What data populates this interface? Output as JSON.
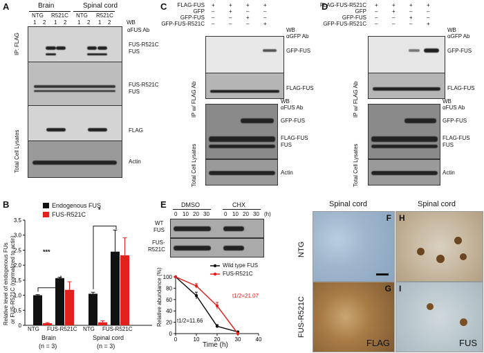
{
  "panels": {
    "A": {
      "label": "A",
      "groups": [
        "Brain",
        "Spinal cord"
      ],
      "lane_groups": [
        "NTG",
        "R521C",
        "NTG",
        "R521C"
      ],
      "lane_numbers": [
        "1",
        "2",
        "1",
        "2",
        "1",
        "2",
        "1",
        "2"
      ],
      "wb": "WB",
      "ip_label": "IP: FLAG",
      "tcl_label": "Total Cell Lysates",
      "ab": "αFUS Ab",
      "band_labels": [
        "FUS-R521C",
        "FUS",
        "FUS-R521C",
        "FUS",
        "FLAG",
        "Actin"
      ]
    },
    "B": {
      "label": "B",
      "legend": [
        "Endogenous FUS",
        "FUS-R521C"
      ],
      "ylabel_line1": "Relative level of endogenous FUs",
      "ylabel_line2": "or FUS-R521C (normalized to actin)",
      "yticks": [
        "0",
        "0.5",
        "1.0",
        "1.5",
        "2.0",
        "2.5",
        "3.0",
        "3.5"
      ],
      "xticks": [
        "NTG",
        "FUS-R521C",
        "NTG",
        "FUS-R521C"
      ],
      "group1": "Brain",
      "group1_n": "(n = 3)",
      "group2": "Spinal cord",
      "group2_n": "(n = 3)",
      "sig1": "***",
      "sig2": "*"
    },
    "C": {
      "label": "C",
      "rows": [
        {
          "name": "FLAG-FUS",
          "signs": [
            "+",
            "+",
            "+",
            "+"
          ]
        },
        {
          "name": "GFP",
          "signs": [
            "–",
            "+",
            "–",
            "–"
          ]
        },
        {
          "name": "GFP-FUS",
          "signs": [
            "–",
            "–",
            "+",
            "–"
          ]
        },
        {
          "name": "GFP-FUS-R521C",
          "signs": [
            "–",
            "–",
            "–",
            "+"
          ]
        }
      ],
      "wb": "WB",
      "ab1": "αGFP Ab",
      "ab2": "αFUS Ab",
      "ip_label": "IP w/ FLAG Ab",
      "tcl_label": "Total Cell Lysates",
      "band_labels": [
        "GFP-FUS",
        "FLAG-FUS",
        "GFP-FUS",
        "FLAG-FUS",
        "FUS",
        "Actin"
      ]
    },
    "D": {
      "label": "D",
      "rows": [
        {
          "name": "FLAG-FUS-R521C",
          "signs": [
            "+",
            "+",
            "+",
            "+"
          ]
        },
        {
          "name": "GFP",
          "signs": [
            "–",
            "+",
            "–",
            "–"
          ]
        },
        {
          "name": "GFP-FUS",
          "signs": [
            "–",
            "–",
            "+",
            "–"
          ]
        },
        {
          "name": "GFP-FUS-R521C",
          "signs": [
            "–",
            "–",
            "–",
            "+"
          ]
        }
      ],
      "wb": "WB",
      "ab1": "αGFP Ab",
      "ab2": "αFUS Ab",
      "ip_label": "IP w/ FLAG Ab",
      "tcl_label": "Total Cell Lysates",
      "band_labels": [
        "GFP-FUS",
        "FLAG-FUS",
        "GFP-FUS",
        "FLAG-FUS",
        "FUS",
        "Actin"
      ]
    },
    "E": {
      "label": "E",
      "treatments": [
        "DMSO",
        "CHX"
      ],
      "times": [
        "0",
        "10",
        "20",
        "30",
        "0",
        "10",
        "20",
        "30"
      ],
      "unit": "(h)",
      "blot_rows_wt": [
        "WT",
        "FUS"
      ],
      "blot_rows_mut": [
        "FUS-",
        "R521C"
      ],
      "legend": [
        "Wild type FUS",
        "FUS-R521C"
      ],
      "ylabel": "Relative abundance (%)",
      "xlabel": "Time (h)",
      "xticks": [
        "0",
        "10",
        "20",
        "30",
        "40"
      ],
      "yticks": [
        "0",
        "20",
        "40",
        "60",
        "80",
        "100"
      ],
      "half_life_wt": "11.66",
      "half_life_mut": "21.07",
      "t_half": "t1/2="
    },
    "F": {
      "label": "F",
      "title": "Spinal cord",
      "row_label": "NTG"
    },
    "G": {
      "label": "G",
      "row_label": "FUS-R521C",
      "stain": "FLAG"
    },
    "H": {
      "label": "H",
      "title": "Spinal cord"
    },
    "I": {
      "label": "I",
      "stain": "FUS"
    }
  },
  "chart_data": [
    {
      "type": "bar",
      "categories": [
        "Brain NTG",
        "Brain FUS-R521C",
        "Spinal cord NTG",
        "Spinal cord FUS-R521C"
      ],
      "series": [
        {
          "name": "Endogenous FUS",
          "values": [
            1.0,
            1.57,
            1.05,
            2.45
          ],
          "errors": [
            0.02,
            0.03,
            0.05,
            0.72
          ],
          "color": "#111111"
        },
        {
          "name": "FUS-R521C",
          "values": [
            0.07,
            1.18,
            0.1,
            2.33
          ],
          "errors": [
            0.02,
            0.27,
            0.05,
            0.58
          ],
          "color": "#e0211d"
        }
      ],
      "ylabel": "Relative level of endogenous FUs or FUS-R521C (normalized to actin)",
      "ylim": [
        0,
        3.5
      ]
    },
    {
      "type": "line",
      "x": [
        0,
        10,
        20,
        30
      ],
      "series": [
        {
          "name": "Wild type FUS",
          "values": [
            100,
            67,
            13,
            3
          ],
          "errors": [
            0,
            6,
            3,
            1
          ],
          "color": "#111111"
        },
        {
          "name": "FUS-R521C",
          "values": [
            100,
            84,
            49,
            0
          ],
          "errors": [
            0,
            4,
            6,
            0
          ],
          "color": "#e0211d"
        }
      ],
      "xlabel": "Time (h)",
      "ylabel": "Relative abundance (%)",
      "xlim": [
        0,
        40
      ],
      "ylim": [
        0,
        100
      ]
    }
  ]
}
